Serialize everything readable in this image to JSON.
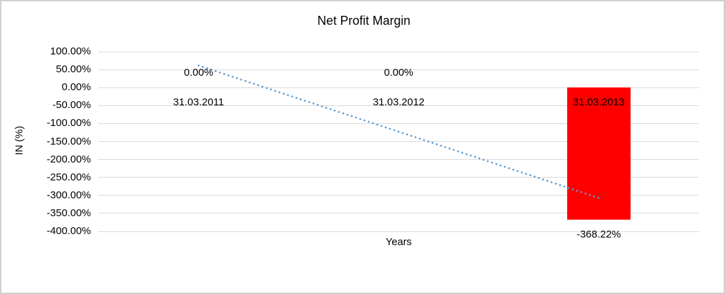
{
  "window": {
    "background": "#ffffff",
    "border_color": "#cfcfcf"
  },
  "chart_data": {
    "type": "bar",
    "title": "Net Profit Margin",
    "xlabel": "Years",
    "ylabel": "IN (%)",
    "categories": [
      "31.03.2011",
      "31.03.2012",
      "31.03.2013"
    ],
    "series": [
      {
        "name": "Net Profit Margin",
        "values": [
          0,
          0,
          -368.22
        ],
        "color": "#ff0000"
      }
    ],
    "data_labels": [
      "0.00%",
      "0.00%",
      "-368.22%"
    ],
    "ylim": [
      -400,
      100
    ],
    "ytick_step": 50,
    "yticks": [
      {
        "value": 100,
        "label": "100.00%"
      },
      {
        "value": 50,
        "label": "50.00%"
      },
      {
        "value": 0,
        "label": "0.00%"
      },
      {
        "value": -50,
        "label": "-50.00%"
      },
      {
        "value": -100,
        "label": "-100.00%"
      },
      {
        "value": -150,
        "label": "-150.00%"
      },
      {
        "value": -200,
        "label": "-200.00%"
      },
      {
        "value": -250,
        "label": "-250.00%"
      },
      {
        "value": -300,
        "label": "-300.00%"
      },
      {
        "value": -350,
        "label": "-350.00%"
      },
      {
        "value": -400,
        "label": "-400.00%"
      }
    ],
    "grid": true,
    "gridline_color": "#d9d9d9",
    "trendline": {
      "type": "linear",
      "style": "dotted",
      "color": "#5b9bd5",
      "start_value": 61.4,
      "end_value": -306.9
    },
    "legend": "none",
    "text_color": "#000000"
  }
}
